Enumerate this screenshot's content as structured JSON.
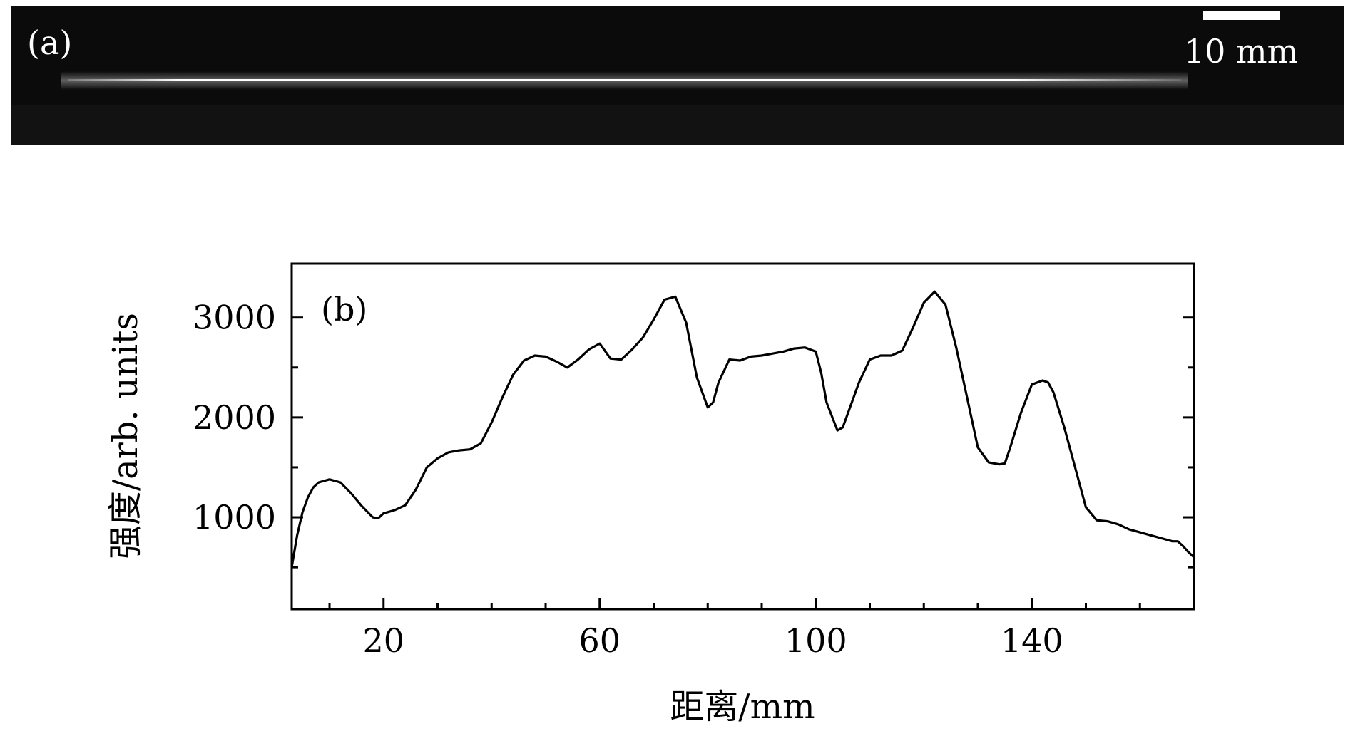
{
  "panel_a": {
    "label": "(a)",
    "scale_bar_label": "10 mm",
    "colors": {
      "background": "#0b0b0b",
      "filament": "#ffffff",
      "text": "#ffffff"
    }
  },
  "chart_data": {
    "type": "line",
    "panel_label": "(b)",
    "title": "",
    "xlabel": "距离/mm",
    "ylabel": "强度/arb. units",
    "xlim": [
      3,
      170
    ],
    "ylim": [
      80,
      3540
    ],
    "x_ticks": [
      20,
      60,
      100,
      140
    ],
    "x_minor_ticks": [
      10,
      30,
      40,
      50,
      70,
      80,
      90,
      110,
      120,
      130,
      150,
      160
    ],
    "y_ticks": [
      1000,
      2000,
      3000
    ],
    "y_minor_ticks": [
      500,
      1500,
      2500
    ],
    "grid": false,
    "legend": "none",
    "line_color": "#000000",
    "series": [
      {
        "x": [
          3,
          4,
          5,
          6,
          7,
          8,
          10,
          12,
          14,
          16,
          18,
          19,
          20,
          22,
          24,
          26,
          28,
          30,
          32,
          34,
          36,
          38,
          40,
          42,
          44,
          46,
          48,
          50,
          52,
          54,
          56,
          58,
          60,
          62,
          64,
          66,
          68,
          70,
          72,
          74,
          76,
          78,
          80,
          81,
          82,
          84,
          86,
          88,
          90,
          92,
          94,
          96,
          98,
          100,
          101,
          102,
          104,
          105,
          106,
          108,
          110,
          112,
          114,
          116,
          118,
          120,
          122,
          124,
          126,
          128,
          130,
          132,
          134,
          135,
          136,
          138,
          140,
          142,
          143,
          144,
          146,
          148,
          150,
          152,
          154,
          156,
          158,
          160,
          162,
          164,
          166,
          167,
          168,
          169,
          170
        ],
        "y": [
          500,
          820,
          1050,
          1200,
          1300,
          1350,
          1380,
          1350,
          1240,
          1110,
          1000,
          990,
          1040,
          1070,
          1120,
          1280,
          1500,
          1590,
          1650,
          1670,
          1680,
          1740,
          1950,
          2200,
          2430,
          2570,
          2620,
          2610,
          2560,
          2500,
          2580,
          2680,
          2740,
          2590,
          2580,
          2680,
          2800,
          2980,
          3180,
          3210,
          2950,
          2400,
          2100,
          2150,
          2350,
          2580,
          2570,
          2610,
          2620,
          2640,
          2660,
          2690,
          2700,
          2660,
          2450,
          2150,
          1870,
          1900,
          2050,
          2350,
          2580,
          2620,
          2620,
          2670,
          2900,
          3150,
          3260,
          3130,
          2700,
          2200,
          1700,
          1550,
          1530,
          1540,
          1700,
          2050,
          2330,
          2370,
          2350,
          2250,
          1900,
          1500,
          1100,
          970,
          960,
          930,
          880,
          850,
          820,
          790,
          760,
          760,
          710,
          650,
          600
        ]
      }
    ]
  }
}
